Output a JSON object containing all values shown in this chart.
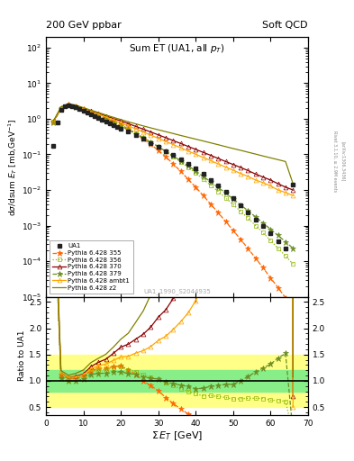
{
  "title_top": "200 GeV ppbar",
  "title_right": "Soft QCD",
  "plot_title": "Sum ET (UA1, all p_{T})",
  "xlabel": "Σ E_T [GeV]",
  "ylabel_main": "dσ/dsum E_T [mb,GeV⁻¹]",
  "ylabel_ratio": "Ratio to UA1",
  "watermark": "UA1_1990_S2044935",
  "right_label": "Rivet 3.1.10, ≥ 2.9M events",
  "arxiv_label": "[arXiv:1306.3436]",
  "UA1_x": [
    2,
    3,
    4,
    5,
    6,
    7,
    8,
    9,
    10,
    11,
    12,
    13,
    14,
    15,
    16,
    17,
    18,
    19,
    20,
    22,
    24,
    26,
    28,
    30,
    32,
    34,
    36,
    38,
    40,
    42,
    44,
    46,
    48,
    50,
    52,
    54,
    56,
    58,
    60,
    62,
    64,
    66
  ],
  "UA1_y": [
    0.17,
    0.8,
    1.8,
    2.3,
    2.4,
    2.3,
    2.1,
    1.9,
    1.7,
    1.5,
    1.3,
    1.2,
    1.05,
    0.95,
    0.85,
    0.75,
    0.67,
    0.6,
    0.53,
    0.43,
    0.34,
    0.27,
    0.21,
    0.16,
    0.125,
    0.095,
    0.072,
    0.054,
    0.04,
    0.028,
    0.019,
    0.013,
    0.0088,
    0.006,
    0.0038,
    0.0024,
    0.0015,
    0.00095,
    0.0006,
    0.00037,
    0.00023,
    0.014
  ],
  "UA1_color": "#222222",
  "p355_x": [
    2,
    4,
    6,
    8,
    10,
    12,
    14,
    16,
    18,
    20,
    22,
    24,
    26,
    28,
    30,
    32,
    34,
    36,
    38,
    40,
    42,
    44,
    46,
    48,
    50,
    52,
    54,
    56,
    58,
    60,
    62,
    64,
    66
  ],
  "p355_y": [
    0.85,
    2.0,
    2.5,
    2.2,
    1.85,
    1.55,
    1.3,
    1.05,
    0.85,
    0.68,
    0.52,
    0.38,
    0.27,
    0.19,
    0.13,
    0.085,
    0.054,
    0.033,
    0.02,
    0.012,
    0.007,
    0.004,
    0.0023,
    0.0013,
    0.00073,
    0.00041,
    0.000225,
    0.000122,
    6.5e-05,
    3.4e-05,
    1.8e-05,
    9.4e-06,
    4.9e-06
  ],
  "p355_color": "#ff6600",
  "p355_label": "Pythia 6.428 355",
  "p356_x": [
    2,
    4,
    6,
    8,
    10,
    12,
    14,
    16,
    18,
    20,
    22,
    24,
    26,
    28,
    30,
    32,
    34,
    36,
    38,
    40,
    42,
    44,
    46,
    48,
    50,
    52,
    54,
    56,
    58,
    60,
    62,
    64,
    66
  ],
  "p356_y": [
    0.82,
    1.95,
    2.45,
    2.18,
    1.82,
    1.52,
    1.27,
    1.03,
    0.83,
    0.67,
    0.52,
    0.4,
    0.3,
    0.223,
    0.165,
    0.12,
    0.086,
    0.061,
    0.043,
    0.03,
    0.02,
    0.0136,
    0.0091,
    0.006,
    0.0039,
    0.0025,
    0.0016,
    0.001,
    0.00063,
    0.00038,
    0.00023,
    0.00014,
    8.3e-05
  ],
  "p356_color": "#8db600",
  "p356_label": "Pythia 6.428 356",
  "p370_x": [
    2,
    4,
    6,
    8,
    10,
    12,
    14,
    16,
    18,
    20,
    22,
    24,
    26,
    28,
    30,
    32,
    34,
    36,
    38,
    40,
    42,
    44,
    46,
    48,
    50,
    52,
    54,
    56,
    58,
    60,
    62,
    64,
    66
  ],
  "p370_y": [
    0.83,
    2.05,
    2.55,
    2.28,
    1.92,
    1.65,
    1.42,
    1.2,
    1.02,
    0.87,
    0.73,
    0.61,
    0.51,
    0.425,
    0.354,
    0.294,
    0.244,
    0.202,
    0.167,
    0.138,
    0.114,
    0.094,
    0.077,
    0.063,
    0.052,
    0.043,
    0.035,
    0.028,
    0.023,
    0.019,
    0.015,
    0.012,
    0.01
  ],
  "p370_color": "#8b0000",
  "p370_label": "Pythia 6.428 370",
  "p379_x": [
    2,
    4,
    6,
    8,
    10,
    12,
    14,
    16,
    18,
    20,
    22,
    24,
    26,
    28,
    30,
    32,
    34,
    36,
    38,
    40,
    42,
    44,
    46,
    48,
    50,
    52,
    54,
    56,
    58,
    60,
    62,
    64,
    66
  ],
  "p379_y": [
    0.8,
    1.9,
    2.38,
    2.1,
    1.75,
    1.45,
    1.2,
    0.97,
    0.78,
    0.62,
    0.49,
    0.38,
    0.29,
    0.22,
    0.165,
    0.122,
    0.09,
    0.066,
    0.048,
    0.034,
    0.024,
    0.017,
    0.0118,
    0.0082,
    0.0056,
    0.0038,
    0.0026,
    0.00175,
    0.00118,
    0.00079,
    0.00053,
    0.00035,
    0.00023
  ],
  "p379_color": "#6b8e23",
  "p379_label": "Pythia 6.428 379",
  "pambt1_x": [
    2,
    4,
    6,
    8,
    10,
    12,
    14,
    16,
    18,
    20,
    22,
    24,
    26,
    28,
    30,
    32,
    34,
    36,
    38,
    40,
    42,
    44,
    46,
    48,
    50,
    52,
    54,
    56,
    58,
    60,
    62,
    64,
    66
  ],
  "pambt1_y": [
    0.85,
    2.05,
    2.55,
    2.25,
    1.9,
    1.6,
    1.35,
    1.12,
    0.93,
    0.77,
    0.63,
    0.52,
    0.425,
    0.347,
    0.283,
    0.231,
    0.188,
    0.153,
    0.124,
    0.101,
    0.082,
    0.067,
    0.054,
    0.044,
    0.036,
    0.029,
    0.024,
    0.019,
    0.016,
    0.013,
    0.01,
    0.0085,
    0.007
  ],
  "pambt1_color": "#ffa500",
  "pambt1_label": "Pythia 6.428 ambt1",
  "pz2_x": [
    2,
    4,
    6,
    8,
    10,
    12,
    14,
    16,
    18,
    20,
    22,
    24,
    26,
    28,
    30,
    32,
    34,
    36,
    38,
    40,
    42,
    44,
    46,
    48,
    50,
    52,
    54,
    56,
    58,
    60,
    62,
    64,
    66
  ],
  "pz2_y": [
    0.88,
    2.15,
    2.65,
    2.4,
    2.05,
    1.75,
    1.5,
    1.28,
    1.1,
    0.95,
    0.82,
    0.72,
    0.63,
    0.555,
    0.49,
    0.435,
    0.385,
    0.34,
    0.302,
    0.268,
    0.238,
    0.211,
    0.187,
    0.165,
    0.146,
    0.13,
    0.115,
    0.102,
    0.09,
    0.08,
    0.071,
    0.063,
    0.015
  ],
  "pz2_color": "#808000",
  "pz2_label": "Pythia 6.428 z2",
  "band_yellow_lo": 0.5,
  "band_yellow_hi": 1.5,
  "band_green_lo": 0.8,
  "band_green_hi": 1.2,
  "xlim": [
    0,
    70
  ],
  "ylim_main": [
    1e-05,
    200
  ],
  "ylim_ratio": [
    0.35,
    2.6
  ],
  "bg_color": "#ffffff"
}
